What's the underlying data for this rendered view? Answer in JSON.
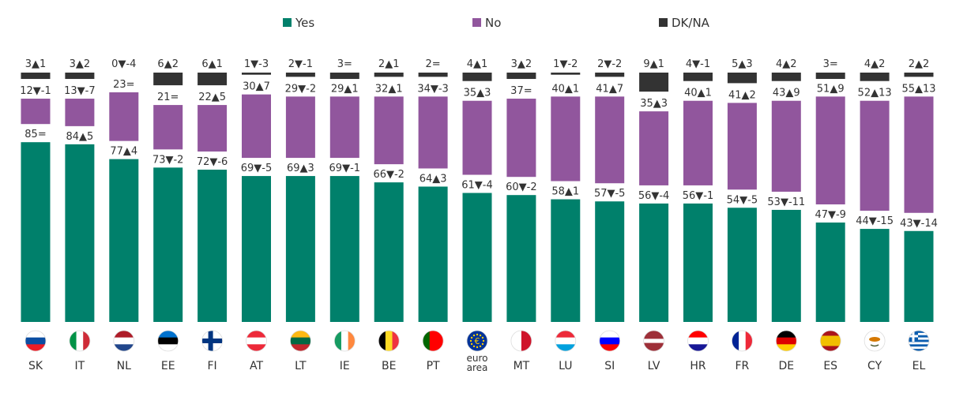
{
  "chart_data": {
    "type": "bar",
    "stacked": true,
    "legend_position": "top",
    "grid": false,
    "categories": [
      "SK",
      "IT",
      "NL",
      "EE",
      "FI",
      "AT",
      "LT",
      "IE",
      "BE",
      "PT",
      "euro area",
      "MT",
      "LU",
      "SI",
      "LV",
      "HR",
      "FR",
      "DE",
      "ES",
      "CY",
      "EL"
    ],
    "flags": [
      "sk",
      "it",
      "nl",
      "ee",
      "fi",
      "at",
      "lt",
      "ie",
      "be",
      "pt",
      "eu",
      "mt",
      "lu",
      "si",
      "lv",
      "hr",
      "fr",
      "de",
      "es",
      "cy",
      "el"
    ],
    "series": [
      {
        "name": "Yes",
        "color": "#00806b",
        "values": [
          85,
          84,
          77,
          73,
          72,
          69,
          69,
          69,
          66,
          64,
          61,
          60,
          58,
          57,
          56,
          56,
          54,
          53,
          47,
          44,
          43
        ],
        "labels": [
          "85=",
          "84▲5",
          "77▲4",
          "73▼-2",
          "72▼-6",
          "69▼-5",
          "69▲3",
          "69▼-1",
          "66▼-2",
          "64▲3",
          "61▼-4",
          "60▼-2",
          "58▲1",
          "57▼-5",
          "56▼-4",
          "56▼-1",
          "54▼-5",
          "53▼-11",
          "47▼-9",
          "44▼-15",
          "43▼-14"
        ]
      },
      {
        "name": "No",
        "color": "#91569d",
        "values": [
          12,
          13,
          23,
          21,
          22,
          30,
          29,
          29,
          32,
          34,
          35,
          37,
          40,
          41,
          35,
          40,
          41,
          43,
          51,
          52,
          55
        ],
        "labels": [
          "12▼-1",
          "13▼-7",
          "23=",
          "21=",
          "22▲5",
          "30▲7",
          "29▼-2",
          "29▲1",
          "32▲1",
          "34▼-3",
          "35▲3",
          "37=",
          "40▲1",
          "41▲7",
          "35▲3",
          "40▲1",
          "41▲2",
          "43▲9",
          "51▲9",
          "52▲13",
          "55▲13"
        ]
      },
      {
        "name": "DK/NA",
        "color": "#333333",
        "values": [
          3,
          3,
          0,
          6,
          6,
          1,
          2,
          3,
          2,
          2,
          4,
          3,
          1,
          2,
          9,
          4,
          5,
          4,
          3,
          4,
          2
        ],
        "labels": [
          "3▲1",
          "3▲2",
          "0▼-4",
          "6▲2",
          "6▲1",
          "1▼-3",
          "2▼-1",
          "3=",
          "2▲1",
          "2=",
          "4▲1",
          "3▲2",
          "1▼-2",
          "2▼-2",
          "9▲1",
          "4▼-1",
          "5▲3",
          "4▲2",
          "3=",
          "4▲2",
          "2▲2"
        ]
      }
    ]
  }
}
